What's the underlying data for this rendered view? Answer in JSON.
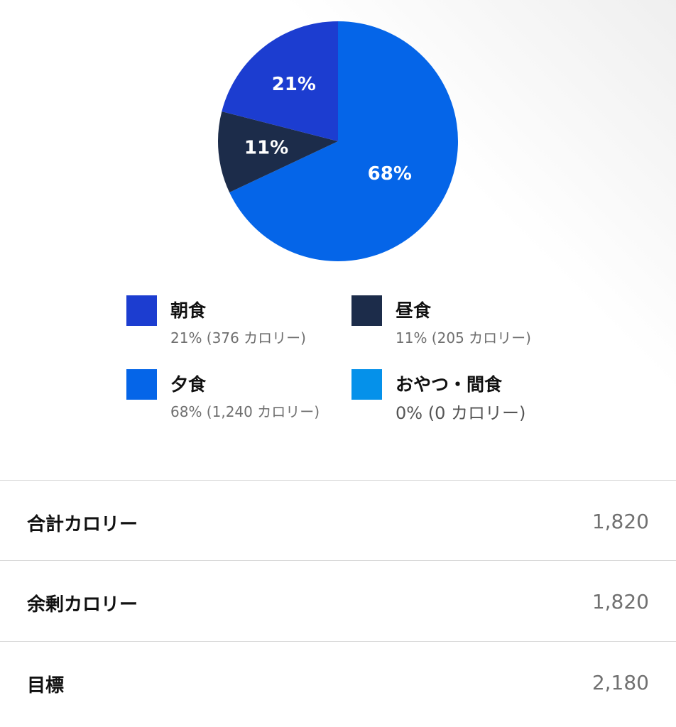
{
  "chart_data": {
    "type": "pie",
    "slices": [
      {
        "label": "夕食",
        "percent": 68,
        "calories": 1240,
        "color": "#0565e8",
        "display": "68%"
      },
      {
        "label": "昼食",
        "percent": 11,
        "calories": 205,
        "color": "#1c2c4a",
        "display": "11%"
      },
      {
        "label": "朝食",
        "percent": 21,
        "calories": 376,
        "color": "#1c3dd0",
        "display": "21%"
      }
    ]
  },
  "legend": [
    {
      "name": "朝食",
      "detail": "21% (376 カロリー)",
      "color": "#1c3dd0"
    },
    {
      "name": "昼食",
      "detail": "11% (205 カロリー)",
      "color": "#1c2c4a"
    },
    {
      "name": "夕食",
      "detail": "68% (1,240 カロリー)",
      "color": "#0565e8"
    },
    {
      "name": "おやつ・間食",
      "detail": "0% (0 カロリー)",
      "color": "#0591ea"
    }
  ],
  "stats": [
    {
      "label": "合計カロリー",
      "value": "1,820"
    },
    {
      "label": "余剰カロリー",
      "value": "1,820"
    },
    {
      "label": "目標",
      "value": "2,180"
    }
  ]
}
